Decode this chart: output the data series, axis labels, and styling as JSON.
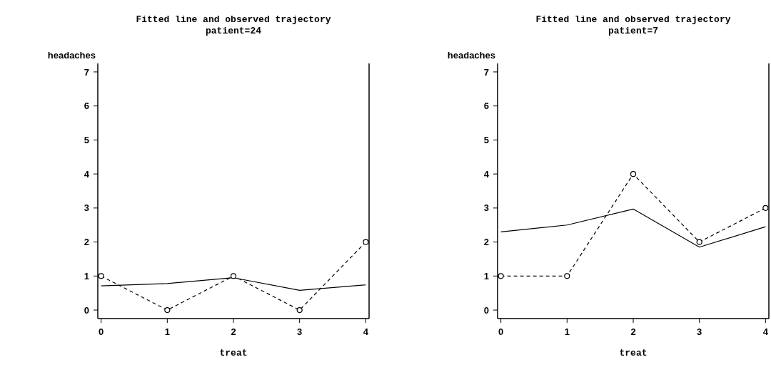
{
  "chart_data": [
    {
      "type": "line",
      "title": "Fitted line and observed trajectory",
      "subtitle": "patient=24",
      "xlabel": "treat",
      "ylabel": "headaches",
      "x": [
        0,
        1,
        2,
        3,
        4
      ],
      "xlim": [
        -0.05,
        4.05
      ],
      "xticks": [
        0,
        1,
        2,
        3,
        4
      ],
      "ylim": [
        -0.25,
        7.25
      ],
      "yticks": [
        0,
        1,
        2,
        3,
        4,
        5,
        6,
        7
      ],
      "grid": false,
      "legend": false,
      "series": [
        {
          "color": "#000000",
          "values": [
            0.71,
            0.78,
            0.95,
            0.58,
            0.74
          ],
          "marker": "none",
          "line_style": "solid"
        },
        {
          "color": "#000000",
          "values": [
            1,
            0,
            1,
            0,
            2
          ],
          "marker": "circle",
          "line_style": "dashed"
        }
      ]
    },
    {
      "type": "line",
      "title": "Fitted line and observed trajectory",
      "subtitle": "patient=7",
      "xlabel": "treat",
      "ylabel": "headaches",
      "x": [
        0,
        1,
        2,
        3,
        4
      ],
      "xlim": [
        -0.05,
        4.05
      ],
      "xticks": [
        0,
        1,
        2,
        3,
        4
      ],
      "ylim": [
        -0.25,
        7.25
      ],
      "yticks": [
        0,
        1,
        2,
        3,
        4,
        5,
        6,
        7
      ],
      "grid": false,
      "legend": false,
      "series": [
        {
          "color": "#000000",
          "values": [
            2.3,
            2.5,
            2.97,
            1.85,
            2.45
          ],
          "marker": "none",
          "line_style": "solid"
        },
        {
          "color": "#000000",
          "values": [
            1,
            1,
            4,
            2,
            3
          ],
          "marker": "circle",
          "line_style": "dashed"
        }
      ]
    }
  ]
}
